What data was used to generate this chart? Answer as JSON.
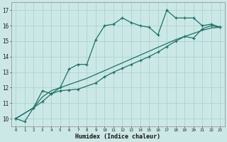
{
  "xlabel": "Humidex (Indice chaleur)",
  "bg_color": "#cce8e6",
  "line_color": "#1e7068",
  "grid_color": "#a8d4d0",
  "xlim": [
    -0.5,
    23.5
  ],
  "ylim": [
    9.5,
    17.5
  ],
  "xtick_positions": [
    0,
    1,
    2,
    3,
    4,
    5,
    6,
    7,
    8,
    9,
    10,
    11,
    12,
    13,
    14,
    15,
    16,
    17,
    18,
    19,
    20,
    21,
    22,
    23
  ],
  "xtick_labels": [
    "0",
    "1",
    "2",
    "3",
    "4",
    "5",
    "6",
    "7",
    "8",
    "9",
    "10",
    "11",
    "12",
    "13",
    "14",
    "15",
    "16",
    "17",
    "18",
    "19",
    "20",
    "21",
    "22",
    "23"
  ],
  "ytick_positions": [
    10,
    11,
    12,
    13,
    14,
    15,
    16,
    17
  ],
  "ytick_labels": [
    "10",
    "11",
    "12",
    "13",
    "14",
    "15",
    "16",
    "17"
  ],
  "s1_x": [
    0,
    1,
    2,
    3,
    4,
    5,
    6,
    7,
    8,
    9,
    10,
    11,
    12,
    13,
    14,
    15,
    16,
    17,
    18,
    19,
    20,
    21,
    22,
    23
  ],
  "s1_y": [
    10.0,
    9.8,
    10.7,
    11.8,
    11.6,
    12.0,
    13.2,
    13.5,
    13.5,
    15.1,
    16.0,
    16.1,
    16.5,
    16.2,
    16.0,
    15.9,
    15.4,
    17.0,
    16.5,
    16.5,
    16.5,
    16.0,
    16.1,
    15.9
  ],
  "s2_x": [
    0,
    2,
    3,
    4,
    5,
    6,
    7,
    9,
    10,
    11,
    12,
    13,
    14,
    15,
    16,
    17,
    18,
    19,
    20,
    21,
    22,
    23
  ],
  "s2_y": [
    10.0,
    10.7,
    11.1,
    11.6,
    11.8,
    11.85,
    11.9,
    12.3,
    12.7,
    13.0,
    13.25,
    13.5,
    13.75,
    14.0,
    14.3,
    14.65,
    15.0,
    15.3,
    15.2,
    15.8,
    16.0,
    15.9
  ],
  "s3_x": [
    0,
    2,
    3,
    4,
    5,
    6,
    7,
    8,
    9,
    10,
    11,
    12,
    13,
    14,
    15,
    16,
    17,
    18,
    19,
    20,
    21,
    22,
    23
  ],
  "s3_y": [
    10.0,
    10.7,
    11.4,
    11.8,
    12.0,
    12.2,
    12.4,
    12.6,
    12.85,
    13.1,
    13.35,
    13.6,
    13.85,
    14.1,
    14.35,
    14.6,
    14.85,
    15.1,
    15.3,
    15.5,
    15.7,
    15.85,
    15.9
  ]
}
